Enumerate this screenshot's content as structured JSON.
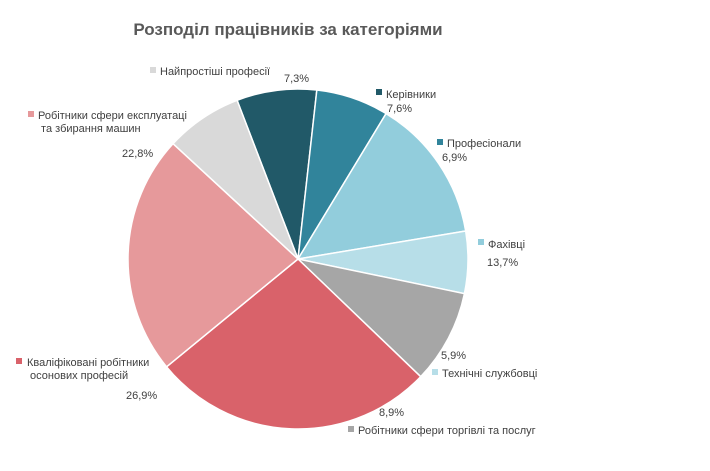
{
  "chart_data": {
    "type": "pie",
    "title": "Розподіл працівників за категоріями",
    "categories": [
      "Керівники",
      "Професіонали",
      "Фахівці",
      "Технічні службовці",
      "Робітники сфери торгівлі та послуг",
      "Кваліфіковані робітники осонових професій",
      "Робітники сфери експлуатаці та збирання машин",
      "Найпростіші професії"
    ],
    "values": [
      7.6,
      6.9,
      13.7,
      5.9,
      8.9,
      26.9,
      22.8,
      7.3
    ],
    "value_labels": [
      "7,6%",
      "6,9%",
      "13,7%",
      "5,9%",
      "8,9%",
      "26,9%",
      "22,8%",
      "7,3%"
    ],
    "colors": [
      "#215968",
      "#31849b",
      "#92cddc",
      "#b7dee8",
      "#a6a6a6",
      "#d9626a",
      "#e6999b",
      "#d9d9d9"
    ],
    "legend": "data-labels"
  }
}
